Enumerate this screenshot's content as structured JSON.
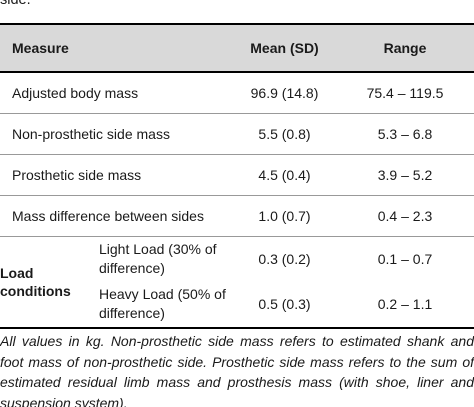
{
  "caption_top": "side.",
  "table": {
    "headers": {
      "measure": "Measure",
      "mean": "Mean (SD)",
      "range": "Range"
    },
    "rows": [
      {
        "measure": "Adjusted body mass",
        "mean": "96.9 (14.8)",
        "range": "75.4 – 119.5"
      },
      {
        "measure": "Non-prosthetic side mass",
        "mean": "5.5 (0.8)",
        "range": "5.3 – 6.8"
      },
      {
        "measure": "Prosthetic side mass",
        "mean": "4.5 (0.4)",
        "range": "3.9 – 5.2"
      },
      {
        "measure": "Mass difference between sides",
        "mean": "1.0 (0.7)",
        "range": "0.4 – 2.3"
      }
    ],
    "load_group": {
      "label_line1": "Load",
      "label_line2": "conditions",
      "rows": [
        {
          "line1": "Light Load (30% of",
          "line2": "difference)",
          "mean": "0.3 (0.2)",
          "range": "0.1 – 0.7"
        },
        {
          "line1": "Heavy Load (50% of",
          "line2": "difference)",
          "mean": "0.5 (0.3)",
          "range": "0.2 – 1.1"
        }
      ]
    }
  },
  "notes": "All values in kg. Non-prosthetic side mass refers to estimated shank and foot mass of non-prosthetic side. Prosthetic side mass refers to the sum of estimated residual limb mass and prosthesis mass (with shoe, liner and suspension system)."
}
